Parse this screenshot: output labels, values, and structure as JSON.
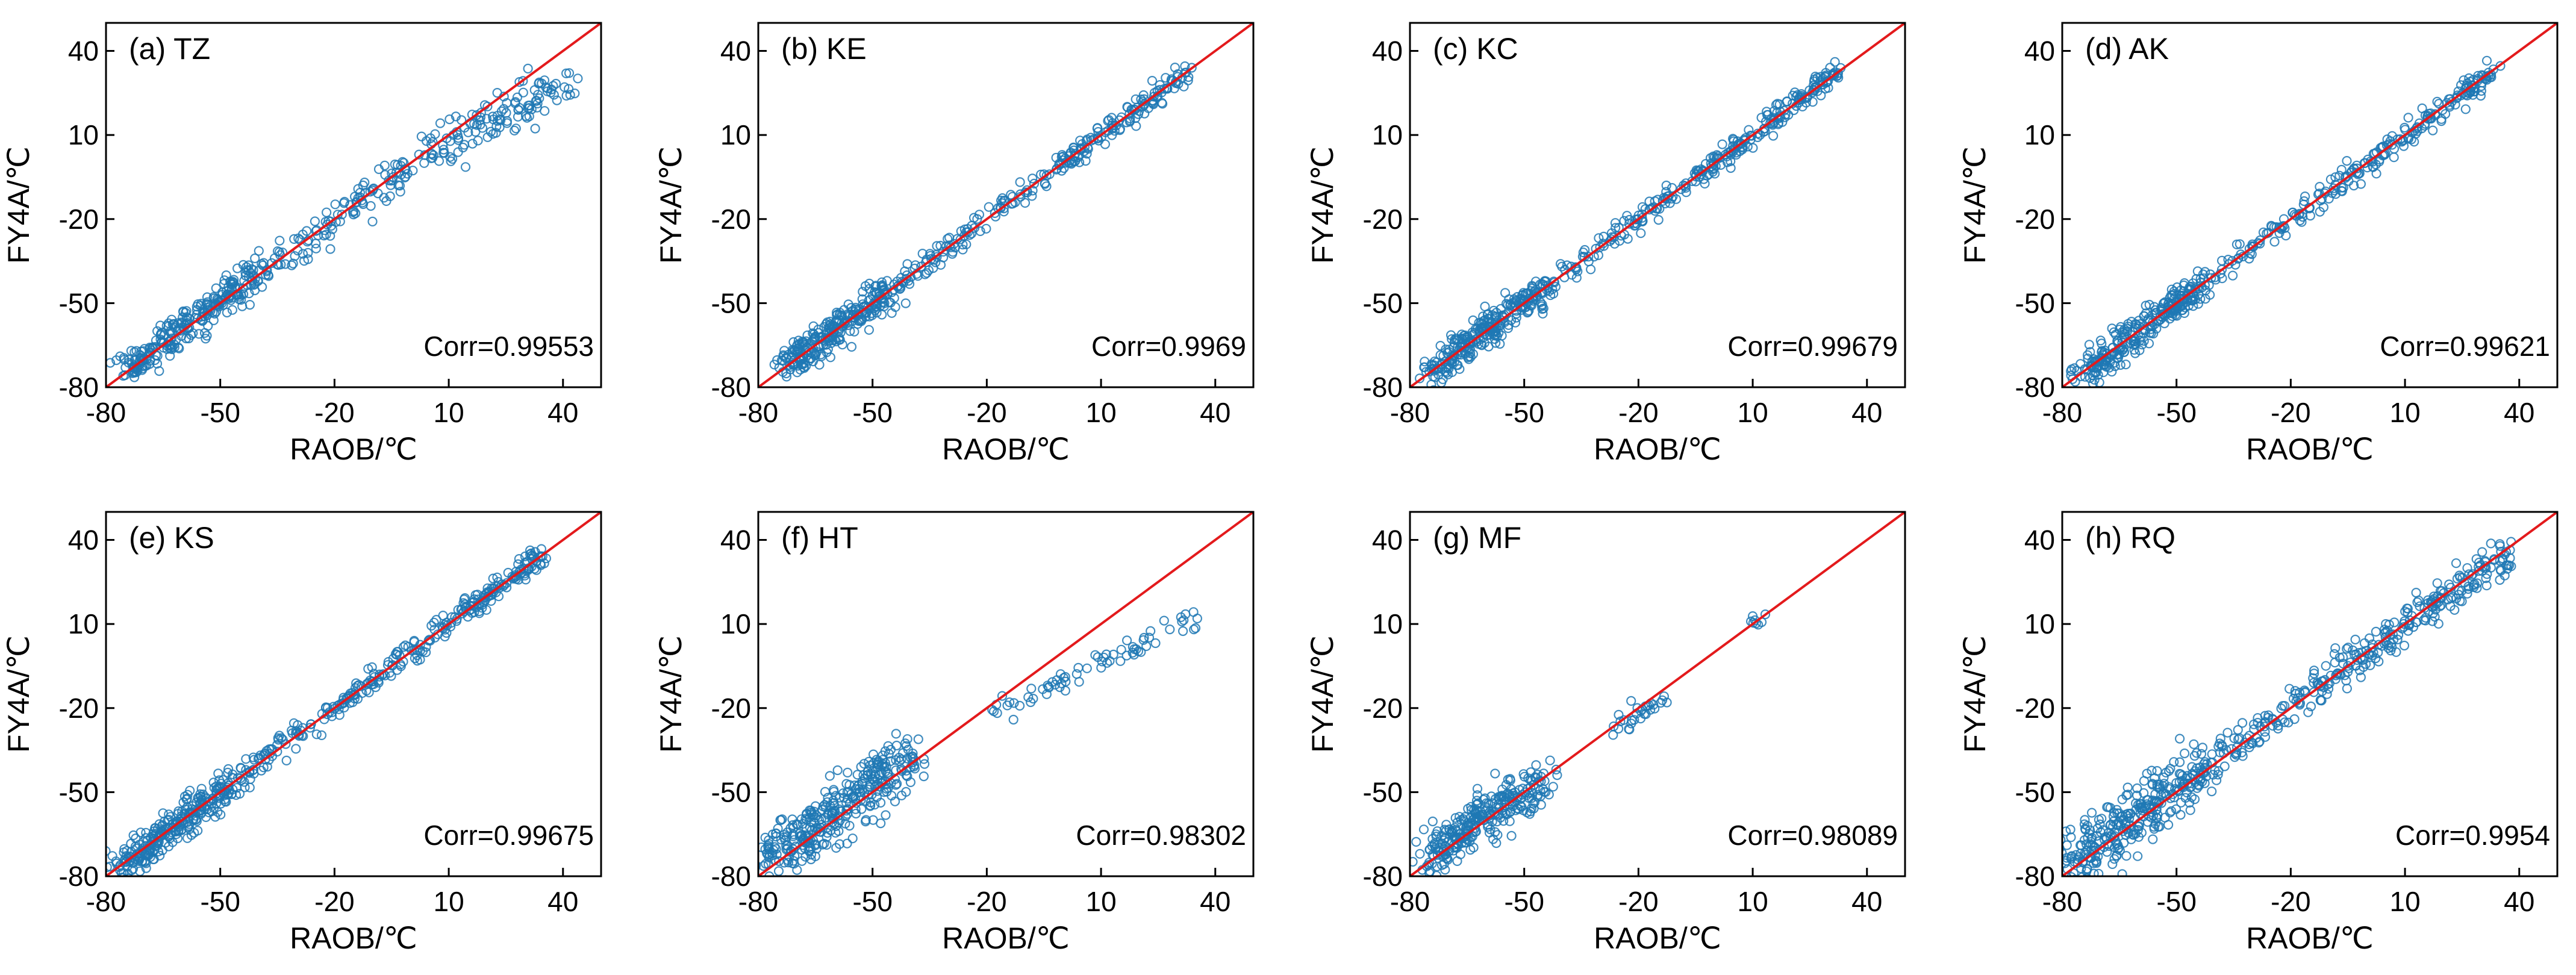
{
  "figure": {
    "colors": {
      "points": "#1f78b4",
      "identity_line": "#e31a1c",
      "frame": "#000000",
      "background": "#ffffff"
    },
    "marker": "open-circle"
  },
  "chart_data": [
    {
      "type": "scatter",
      "panel": "(a) TZ",
      "xlabel": "RAOB/℃",
      "ylabel": "FY4A/℃",
      "corr_label": "Corr=0.99553",
      "xlim": [
        -80,
        50
      ],
      "ylim": [
        -80,
        50
      ],
      "xticks": [
        -80,
        -50,
        -20,
        10,
        40
      ],
      "yticks": [
        -80,
        -50,
        -20,
        10,
        40
      ],
      "reference_line": "y = x",
      "grid": false,
      "segments": [
        {
          "x": [
            -75,
            -40
          ],
          "y": [
            -74,
            -40
          ],
          "n": 260,
          "spread": 3
        },
        {
          "x": [
            -40,
            0
          ],
          "y": [
            -40,
            -1
          ],
          "n": 110,
          "spread": 3
        },
        {
          "x": [
            0,
            41
          ],
          "y": [
            -1,
            30
          ],
          "n": 130,
          "spread": 4
        }
      ]
    },
    {
      "type": "scatter",
      "panel": "(b) KE",
      "xlabel": "RAOB/℃",
      "ylabel": "FY4A/℃",
      "corr_label": "Corr=0.9969",
      "xlim": [
        -80,
        50
      ],
      "ylim": [
        -80,
        50
      ],
      "xticks": [
        -80,
        -50,
        -20,
        10,
        40
      ],
      "yticks": [
        -80,
        -50,
        -20,
        10,
        40
      ],
      "reference_line": "y = x",
      "grid": false,
      "segments": [
        {
          "x": [
            -73,
            -45
          ],
          "y": [
            -73,
            -45
          ],
          "n": 260,
          "spread": 3
        },
        {
          "x": [
            -45,
            0
          ],
          "y": [
            -45,
            0
          ],
          "n": 110,
          "spread": 2
        },
        {
          "x": [
            0,
            33
          ],
          "y": [
            0,
            33
          ],
          "n": 130,
          "spread": 2
        }
      ]
    },
    {
      "type": "scatter",
      "panel": "(c) KC",
      "xlabel": "RAOB/℃",
      "ylabel": "FY4A/℃",
      "corr_label": "Corr=0.99679",
      "xlim": [
        -80,
        50
      ],
      "ylim": [
        -80,
        50
      ],
      "xticks": [
        -80,
        -50,
        -20,
        10,
        40
      ],
      "yticks": [
        -80,
        -50,
        -20,
        10,
        40
      ],
      "reference_line": "y = x",
      "grid": false,
      "segments": [
        {
          "x": [
            -75,
            -45
          ],
          "y": [
            -75,
            -45
          ],
          "n": 260,
          "spread": 3
        },
        {
          "x": [
            -45,
            0
          ],
          "y": [
            -45,
            0
          ],
          "n": 130,
          "spread": 2
        },
        {
          "x": [
            0,
            33
          ],
          "y": [
            0,
            34
          ],
          "n": 150,
          "spread": 2
        }
      ]
    },
    {
      "type": "scatter",
      "panel": "(d) AK",
      "xlabel": "RAOB/℃",
      "ylabel": "FY4A/℃",
      "corr_label": "Corr=0.99621",
      "xlim": [
        -80,
        50
      ],
      "ylim": [
        -80,
        50
      ],
      "xticks": [
        -80,
        -50,
        -20,
        10,
        40
      ],
      "yticks": [
        -80,
        -50,
        -20,
        10,
        40
      ],
      "reference_line": "y = x",
      "grid": false,
      "segments": [
        {
          "x": [
            -75,
            -45
          ],
          "y": [
            -75,
            -45
          ],
          "n": 260,
          "spread": 3
        },
        {
          "x": [
            -45,
            0
          ],
          "y": [
            -45,
            0
          ],
          "n": 120,
          "spread": 2
        },
        {
          "x": [
            0,
            34
          ],
          "y": [
            0,
            34
          ],
          "n": 130,
          "spread": 2
        }
      ]
    },
    {
      "type": "scatter",
      "panel": "(e) KS",
      "xlabel": "RAOB/℃",
      "ylabel": "FY4A/℃",
      "corr_label": "Corr=0.99675",
      "xlim": [
        -80,
        50
      ],
      "ylim": [
        -80,
        50
      ],
      "xticks": [
        -80,
        -50,
        -20,
        10,
        40
      ],
      "yticks": [
        -80,
        -50,
        -20,
        10,
        40
      ],
      "reference_line": "y = x",
      "grid": false,
      "segments": [
        {
          "x": [
            -77,
            -45
          ],
          "y": [
            -77,
            -45
          ],
          "n": 280,
          "spread": 3
        },
        {
          "x": [
            -45,
            0
          ],
          "y": [
            -45,
            0
          ],
          "n": 140,
          "spread": 2
        },
        {
          "x": [
            0,
            35
          ],
          "y": [
            0,
            35
          ],
          "n": 150,
          "spread": 2
        }
      ]
    },
    {
      "type": "scatter",
      "panel": "(f) HT",
      "xlabel": "RAOB/℃",
      "ylabel": "FY4A/℃",
      "corr_label": "Corr=0.98302",
      "xlim": [
        -80,
        50
      ],
      "ylim": [
        -80,
        50
      ],
      "xticks": [
        -80,
        -50,
        -20,
        10,
        40
      ],
      "yticks": [
        -80,
        -50,
        -20,
        10,
        40
      ],
      "reference_line": "y = x",
      "grid": false,
      "segments": [
        {
          "x": [
            -78,
            -40
          ],
          "y": [
            -75,
            -36
          ],
          "n": 340,
          "spread": 5
        },
        {
          "x": [
            -20,
            35
          ],
          "y": [
            -23,
            13
          ],
          "n": 70,
          "spread": 2
        }
      ]
    },
    {
      "type": "scatter",
      "panel": "(g) MF",
      "xlabel": "RAOB/℃",
      "ylabel": "FY4A/℃",
      "corr_label": "Corr=0.98089",
      "xlim": [
        -80,
        50
      ],
      "ylim": [
        -80,
        50
      ],
      "xticks": [
        -80,
        -50,
        -20,
        10,
        40
      ],
      "yticks": [
        -80,
        -50,
        -20,
        10,
        40
      ],
      "reference_line": "y = x",
      "grid": false,
      "segments": [
        {
          "x": [
            -76,
            -45
          ],
          "y": [
            -74,
            -44
          ],
          "n": 280,
          "spread": 4
        },
        {
          "x": [
            -28,
            -13
          ],
          "y": [
            -27,
            -17
          ],
          "n": 30,
          "spread": 2
        },
        {
          "x": [
            10,
            16
          ],
          "y": [
            10,
            15
          ],
          "n": 8,
          "spread": 1
        }
      ]
    },
    {
      "type": "scatter",
      "panel": "(h) RQ",
      "xlabel": "RAOB/℃",
      "ylabel": "FY4A/℃",
      "corr_label": "Corr=0.9954",
      "xlim": [
        -80,
        50
      ],
      "ylim": [
        -80,
        50
      ],
      "xticks": [
        -80,
        -50,
        -20,
        10,
        40
      ],
      "yticks": [
        -80,
        -50,
        -20,
        10,
        40
      ],
      "reference_line": "y = x",
      "grid": false,
      "segments": [
        {
          "x": [
            -78,
            -45
          ],
          "y": [
            -76,
            -44
          ],
          "n": 290,
          "spread": 5
        },
        {
          "x": [
            -45,
            0
          ],
          "y": [
            -44,
            0
          ],
          "n": 160,
          "spread": 3
        },
        {
          "x": [
            0,
            38
          ],
          "y": [
            0,
            36
          ],
          "n": 160,
          "spread": 3
        }
      ]
    }
  ]
}
